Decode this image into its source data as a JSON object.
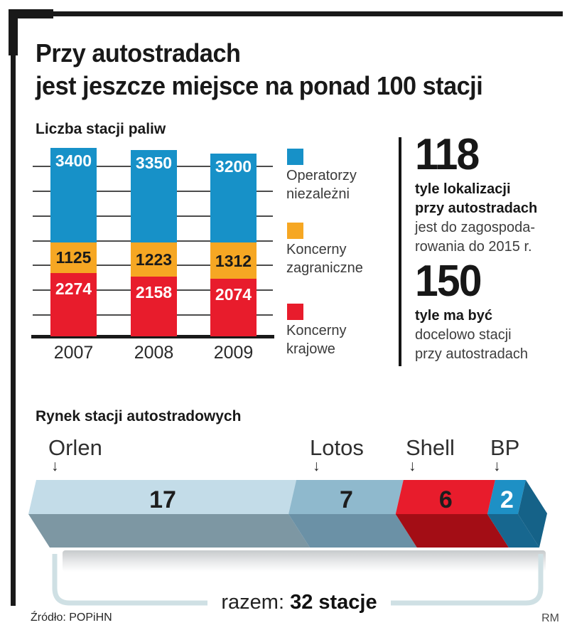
{
  "header": {
    "title_line1": "Przy autostradach",
    "title_line2": "jest jeszcze miejsce na ponad 100 stacji"
  },
  "chart_data": [
    {
      "type": "bar",
      "stacked": true,
      "title": "Liczba stacji paliw",
      "categories": [
        "2007",
        "2008",
        "2009"
      ],
      "series": [
        {
          "name": "Koncerny krajowe",
          "color": "#e81c2c",
          "label_color": "#ffffff",
          "label_pos": "top",
          "label_pad": 9,
          "values": [
            2274,
            2158,
            2074
          ]
        },
        {
          "name": "Koncerny zagraniczne",
          "color": "#f6a723",
          "label_color": "#1a1a1a",
          "label_pos": "center",
          "label_pad": 0,
          "values": [
            1125,
            1223,
            1312
          ]
        },
        {
          "name": "Operatorzy niezależni",
          "color": "#1791c8",
          "label_color": "#ffffff",
          "label_pos": "top",
          "label_pad": 5,
          "values": [
            3400,
            3350,
            3200
          ]
        }
      ],
      "legend": [
        {
          "lines": [
            "Operatorzy",
            "niezależni"
          ],
          "color": "#1791c8"
        },
        {
          "lines": [
            "Koncerny",
            "zagraniczne"
          ],
          "color": "#f6a723"
        },
        {
          "lines": [
            "Koncerny",
            "krajowe"
          ],
          "color": "#e81c2c"
        }
      ],
      "grid": true,
      "value_labels": true,
      "legend_position": "right",
      "ylim": [
        0,
        7000
      ]
    },
    {
      "type": "bar",
      "orientation": "horizontal",
      "style": "3d",
      "title": "Rynek stacji autostradowych",
      "segments": [
        {
          "label": "Orlen",
          "value": 17,
          "top_color": "#c3dce8",
          "front_color": "#7d97a3",
          "text_color": "#1d1d1d"
        },
        {
          "label": "Lotos",
          "value": 7,
          "top_color": "#8fb9cd",
          "front_color": "#6b91a6",
          "text_color": "#1d1d1d"
        },
        {
          "label": "Shell",
          "value": 6,
          "top_color": "#e81c2c",
          "front_color": "#a30d15",
          "text_color": "#1d1d1d"
        },
        {
          "label": "BP",
          "value": 2,
          "top_color": "#1e90c5",
          "front_color": "#17678f",
          "text_color": "#ffffff"
        }
      ],
      "cap_color": "#156288",
      "arrow_icon": "↓",
      "total": 32,
      "razem_prefix": "razem:",
      "razem_value": "32 stacje"
    }
  ],
  "stats": [
    {
      "number": "118",
      "bold_lines": [
        "tyle lokalizacji",
        "przy autostradach"
      ],
      "lines": [
        "jest do zagospoda-",
        "rowania do 2015 r."
      ]
    },
    {
      "number": "150",
      "bold_lines": [
        "tyle ma być"
      ],
      "lines": [
        "docelowo stacji",
        "przy autostradach"
      ]
    }
  ],
  "footer": {
    "source": "Źródło: POPiHN",
    "credit": "RM"
  }
}
